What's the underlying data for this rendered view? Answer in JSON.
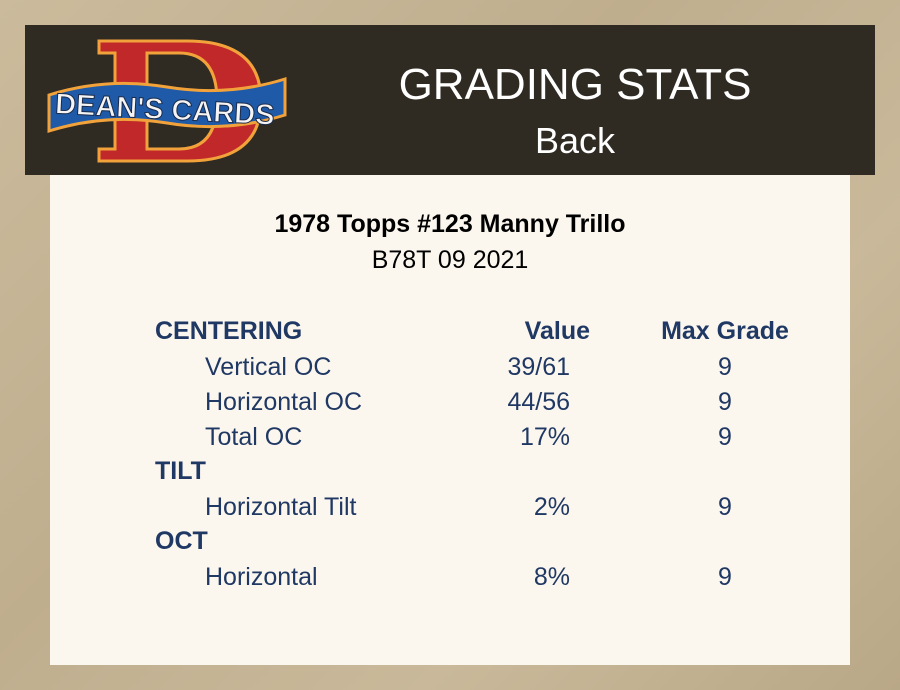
{
  "header": {
    "logo_text": "DEAN'S CARDS",
    "logo_letter": "D",
    "title": "GRADING STATS",
    "subtitle": "Back"
  },
  "card": {
    "title": "1978 Topps #123 Manny Trillo",
    "code": "B78T 09 2021"
  },
  "columns": {
    "value": "Value",
    "max_grade": "Max Grade"
  },
  "sections": [
    {
      "name": "CENTERING",
      "rows": [
        {
          "label": "Vertical OC",
          "value": "39/61",
          "max": "9"
        },
        {
          "label": "Horizontal OC",
          "value": "44/56",
          "max": "9"
        },
        {
          "label": "Total OC",
          "value": "17%",
          "max": "9"
        }
      ]
    },
    {
      "name": "TILT",
      "rows": [
        {
          "label": "Horizontal Tilt",
          "value": "2%",
          "max": "9"
        }
      ]
    },
    {
      "name": "OCT",
      "rows": [
        {
          "label": "Horizontal",
          "value": "8%",
          "max": "9"
        }
      ]
    }
  ],
  "colors": {
    "text": "#1f3864",
    "panel": "#fcf7ee",
    "header": "#2f2a22",
    "logo_red": "#c0282a",
    "logo_blue": "#1e5aa8",
    "logo_orange": "#f2a23a"
  }
}
